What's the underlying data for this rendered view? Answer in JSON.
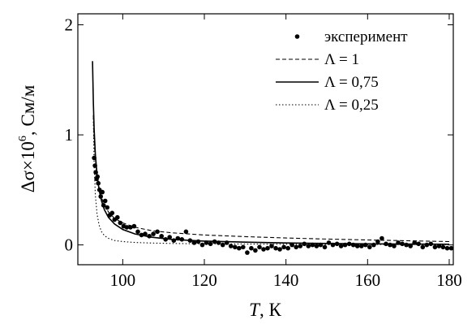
{
  "chart_data": {
    "type": "scatter",
    "xlabel_symbol": "T",
    "xlabel_unit": ", К",
    "ylabel_prefix": "Δσ×10",
    "ylabel_exp": "6",
    "ylabel_unit": ", См/м",
    "xlim": [
      89,
      181
    ],
    "ylim": [
      -0.18,
      2.1
    ],
    "x_ticks": [
      100,
      120,
      140,
      160,
      180
    ],
    "y_ticks": [
      0,
      1,
      2
    ],
    "legend_position": "top-right",
    "grid": false,
    "series": [
      {
        "name": "эксперимент",
        "kind": "points",
        "x": [
          93.0,
          93.2,
          93.4,
          93.6,
          93.8,
          94.0,
          94.3,
          94.6,
          95.0,
          95.3,
          95.7,
          96.2,
          96.8,
          97.4,
          98.0,
          98.7,
          99.4,
          100.2,
          101.0,
          101.9,
          102.8,
          103.7,
          104.6,
          105.5,
          106.5,
          107.5,
          108.5,
          109.5,
          110.5,
          111.5,
          112.5,
          113.5,
          114.5,
          115.5,
          116.5,
          117.5,
          118.5,
          119.5,
          120.5,
          121.5,
          122.5,
          123.5,
          124.5,
          125.5,
          126.5,
          127.5,
          128.5,
          129.5,
          130.5,
          131.5,
          132.5,
          133.5,
          134.5,
          135.5,
          136.5,
          137.5,
          138.5,
          139.5,
          140.5,
          141.5,
          142.5,
          143.5,
          144.5,
          145.5,
          146.5,
          147.5,
          148.5,
          149.5,
          150.5,
          151.5,
          152.5,
          153.5,
          154.5,
          155.5,
          156.5,
          157.5,
          158.5,
          159.5,
          160.5,
          161.5,
          162.5,
          163.5,
          164.5,
          165.5,
          166.5,
          167.5,
          168.5,
          169.5,
          170.5,
          171.5,
          172.5,
          173.5,
          174.5,
          175.5,
          176.5,
          177.5,
          178.5,
          179.5,
          180.5
        ],
        "y": [
          0.79,
          0.72,
          0.66,
          0.6,
          0.62,
          0.56,
          0.5,
          0.44,
          0.48,
          0.36,
          0.4,
          0.34,
          0.27,
          0.29,
          0.23,
          0.25,
          0.2,
          0.17,
          0.16,
          0.16,
          0.17,
          0.12,
          0.09,
          0.1,
          0.08,
          0.1,
          0.12,
          0.08,
          0.05,
          0.07,
          0.04,
          0.06,
          0.05,
          0.12,
          0.04,
          0.02,
          0.03,
          0.0,
          0.02,
          0.01,
          0.03,
          0.02,
          0.0,
          0.02,
          -0.01,
          -0.02,
          -0.03,
          -0.02,
          -0.07,
          -0.03,
          -0.05,
          -0.02,
          -0.04,
          -0.03,
          -0.01,
          -0.03,
          -0.04,
          -0.02,
          -0.03,
          0.0,
          -0.02,
          -0.01,
          0.01,
          -0.01,
          0.0,
          -0.01,
          0.0,
          -0.02,
          0.02,
          0.0,
          0.01,
          -0.01,
          0.0,
          0.01,
          0.0,
          -0.01,
          -0.01,
          0.0,
          -0.02,
          0.0,
          0.03,
          0.06,
          0.01,
          0.0,
          -0.01,
          0.02,
          0.01,
          0.0,
          -0.01,
          0.02,
          0.01,
          -0.02,
          0.0,
          0.01,
          -0.02,
          -0.01,
          -0.02,
          -0.03,
          -0.03
        ]
      },
      {
        "name": "Λ = 1",
        "kind": "line",
        "dash": "dashed",
        "x": [
          92.8,
          93.0,
          93.3,
          93.7,
          94.2,
          94.8,
          95.5,
          96.5,
          98.0,
          100.0,
          103.0,
          107.0,
          112.0,
          120.0,
          130.0,
          140.0,
          150.0,
          160.0,
          170.0,
          180.0
        ],
        "y": [
          1.18,
          0.95,
          0.78,
          0.63,
          0.52,
          0.43,
          0.36,
          0.3,
          0.24,
          0.2,
          0.16,
          0.13,
          0.11,
          0.09,
          0.075,
          0.063,
          0.053,
          0.045,
          0.038,
          0.03
        ]
      },
      {
        "name": "Λ = 0,75",
        "kind": "line",
        "dash": "solid",
        "x": [
          92.6,
          92.8,
          93.0,
          93.3,
          93.7,
          94.2,
          94.8,
          95.5,
          96.5,
          98.0,
          100.0,
          103.0,
          107.0,
          112.0,
          120.0,
          130.0,
          140.0,
          150.0,
          160.0,
          170.0,
          180.0
        ],
        "y": [
          1.67,
          1.3,
          1.05,
          0.82,
          0.64,
          0.5,
          0.4,
          0.32,
          0.25,
          0.19,
          0.14,
          0.1,
          0.07,
          0.05,
          0.035,
          0.025,
          0.018,
          0.013,
          0.01,
          0.008,
          0.006
        ]
      },
      {
        "name": "Λ = 0,25",
        "kind": "line",
        "dash": "dotted",
        "x": [
          92.8,
          93.0,
          93.3,
          93.7,
          94.2,
          94.8,
          95.5,
          96.5,
          98.0,
          100.0,
          103.0,
          107.0,
          112.0,
          120.0,
          130.0,
          140.0,
          150.0,
          160.0,
          170.0,
          180.0
        ],
        "y": [
          1.15,
          0.72,
          0.45,
          0.28,
          0.18,
          0.12,
          0.085,
          0.06,
          0.04,
          0.03,
          0.022,
          0.017,
          0.013,
          0.01,
          0.008,
          0.006,
          0.005,
          0.004,
          0.003,
          0.003
        ]
      }
    ]
  }
}
